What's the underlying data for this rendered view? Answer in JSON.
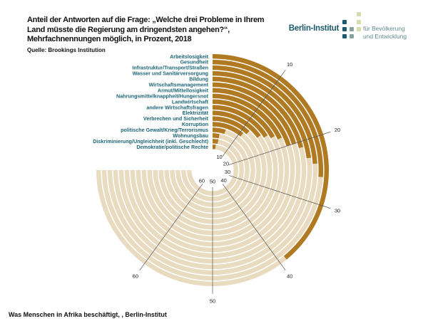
{
  "header": {
    "title": "Anteil der Antworten auf die Frage: „Welche drei Probleme in Ihrem Land müsste die Regierung am dringendsten angehen?“, Mehrfachnennungen möglich, in Prozent, 2018",
    "source": "Quelle: Brookings Institution"
  },
  "logo": {
    "name": "Berlin-Institut",
    "line1": "für Bevölkerung",
    "line2": "und Entwicklung"
  },
  "footer": {
    "caption": "Was Menschen in Afrika beschäftigt, , Berlin-Institut"
  },
  "colors": {
    "bar": "#b07a23",
    "track": "#e9dbc0",
    "label": "#1d6577",
    "grid": "#555555"
  },
  "chart_data": {
    "type": "bar",
    "layout": "radial",
    "title": "Anteil der Antworten auf die Frage: „Welche drei Probleme in Ihrem Land müsste die Regierung am dringendsten angehen?“, Mehrfachnennungen möglich, in Prozent, 2018",
    "unit": "Prozent",
    "categories": [
      "Arbeitslosigkeit",
      "Gesundheit",
      "Infrastruktur/Transport/Straßen",
      "Wasser und Sanitärversorgung",
      "Bildung",
      "Wirtschaftsmanagement",
      "Armut/Mittellosigkeit",
      "Nahrungsmittelknappheit/Hungersnot",
      "Landwirtschaft",
      "andere Wirtschaftsfragen",
      "Elektrizität",
      "Verbrechen und Sicherheit",
      "Korruption",
      "politische Gewalt/Krieg/Terrorismus",
      "Wohnungsbau",
      "Diskriminierung/Ungleichheit (inkl. Geschlecht)",
      "Demokratie/politische Rechte"
    ],
    "values": [
      39,
      26,
      24,
      23,
      21,
      20,
      20,
      18,
      17,
      16,
      15,
      12,
      11,
      5,
      3,
      3,
      2
    ],
    "axis_max_track": 75,
    "full_circle_value": 100,
    "ticks": [
      10,
      20,
      30,
      40,
      50,
      60
    ],
    "tick_labels": [
      "10",
      "20",
      "30",
      "40",
      "50",
      "60"
    ],
    "grid": true
  }
}
